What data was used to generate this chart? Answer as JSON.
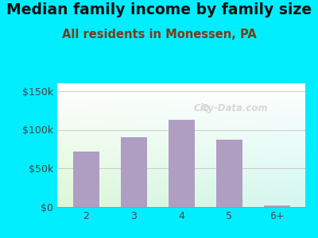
{
  "title": "Median family income by family size",
  "subtitle": "All residents in Monessen, PA",
  "categories": [
    "2",
    "3",
    "4",
    "5",
    "6+"
  ],
  "values": [
    72000,
    90000,
    113000,
    87000,
    2500
  ],
  "bar_color": "#b09ec2",
  "title_fontsize": 13.5,
  "subtitle_fontsize": 10.5,
  "subtitle_color": "#7a3a1a",
  "title_color": "#111111",
  "yticks": [
    0,
    50000,
    100000,
    150000
  ],
  "ytick_labels": [
    "$0",
    "$50k",
    "$100k",
    "$150k"
  ],
  "ylim": [
    0,
    160000
  ],
  "bg_outer": "#00eeff",
  "watermark": "City-Data.com"
}
